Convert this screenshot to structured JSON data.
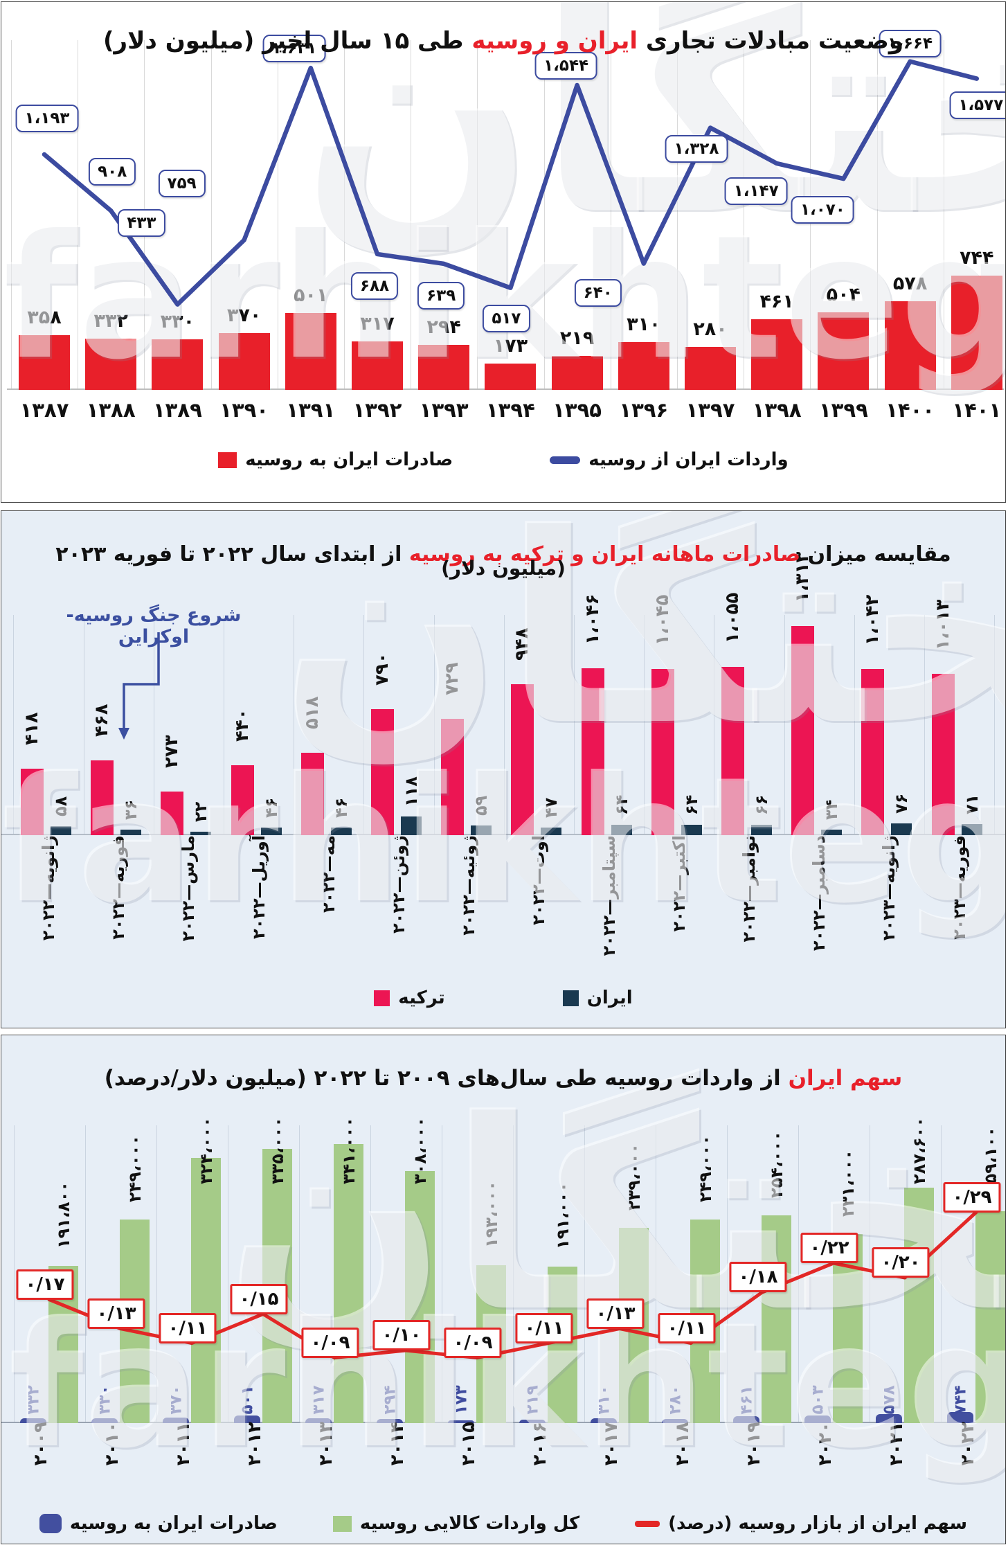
{
  "watermark": "farhikhtegan",
  "watermark_fa": "فرهیختگان",
  "panel1": {
    "title": {
      "pre": "وضعیت مبادلات تجاری ",
      "highlight": "ایران و روسیه",
      "post": " طی ۱۵ سال اخیر (میلیون دلار)"
    }
  },
  "panel2": {
    "title": {
      "pre": "مقایسه میزان ",
      "highlight": "صادرات ماهانه ایران و ترکیه به روسیه",
      "post": " از ابتدای سال ۲۰۲۲ تا فوریه ۲۰۲۳"
    },
    "subtitle": "(میلیون دلار)",
    "annotation": "شروع جنگ روسیه-اوکراین",
    "annotation_target": "فوریه—۲۰۲۲"
  },
  "panel3": {
    "title": {
      "pre": "",
      "highlight": "سهم ایران",
      "post": " از واردات روسیه طی سال‌های ۲۰۰۹ تا ۲۰۲۲ (میلیون دلار/درصد)"
    }
  },
  "chart_data": [
    {
      "type": "bar+line",
      "title": "وضعیت مبادلات تجاری ایران و روسیه طی ۱۵ سال اخیر (میلیون دلار)",
      "unit": "میلیون دلار",
      "xlabel": "سال (هجری شمسی)",
      "grid": "vertical",
      "legend_position": "bottom",
      "categories": [
        "۱۳۸۷",
        "۱۳۸۸",
        "۱۳۸۹",
        "۱۳۹۰",
        "۱۳۹۱",
        "۱۳۹۲",
        "۱۳۹۳",
        "۱۳۹۴",
        "۱۳۹۵",
        "۱۳۹۶",
        "۱۳۹۷",
        "۱۳۹۸",
        "۱۳۹۹",
        "۱۴۰۰",
        "۱۴۰۱"
      ],
      "series": [
        {
          "name": "صادرات ایران به روسیه",
          "type": "bar",
          "color": "#e8202a",
          "values": [
            358,
            332,
            330,
            370,
            501,
            317,
            294,
            173,
            219,
            310,
            280,
            461,
            504,
            578,
            744
          ],
          "labels": [
            "۳۵۸",
            "۳۳۲",
            "۳۳۰",
            "۳۷۰",
            "۵۰۱",
            "۳۱۷",
            "۲۹۴",
            "۱۷۳",
            "۲۱۹",
            "۳۱۰",
            "۲۸۰",
            "۴۶۱",
            "۵۰۴",
            "۵۷۸",
            "۷۴۴"
          ]
        },
        {
          "name": "واردات ایران از روسیه",
          "type": "line",
          "color": "#3c4ba0",
          "values": [
            1193,
            908,
            433,
            759,
            1631,
            688,
            639,
            517,
            1544,
            640,
            1328,
            1147,
            1070,
            1664,
            1577
          ],
          "labels": [
            "۱،۱۹۳",
            "۹۰۸",
            "۴۳۳",
            "۷۵۹",
            "۱،۶۳۱",
            "۶۸۸",
            "۶۳۹",
            "۵۱۷",
            "۱،۵۴۴",
            "۶۴۰",
            "۱،۳۲۸",
            "۱،۱۴۷",
            "۱،۰۷۰",
            "۱،۶۶۴",
            "۱،۵۷۷"
          ]
        }
      ]
    },
    {
      "type": "bar",
      "title": "مقایسه میزان صادرات ماهانه ایران و ترکیه به روسیه از ابتدای سال ۲۰۲۲ تا فوریه ۲۰۲۳ (میلیون دلار)",
      "unit": "میلیون دلار",
      "grid": "vertical",
      "legend_position": "bottom",
      "categories": [
        "ژانویه—۲۰۲۲",
        "فوریه—۲۰۲۲",
        "مارس—۲۰۲۲",
        "آوریل—۲۰۲۲",
        "مه—۲۰۲۲",
        "ژوئن—۲۰۲۲",
        "ژوئیه—۲۰۲۲",
        "اوت—۲۰۲۲",
        "سپتامبر—۲۰۲۲",
        "اکتبر—۲۰۲۲",
        "نوامبر—۲۰۲۲",
        "دسامبر—۲۰۲۲",
        "ژانویه—۲۰۲۳",
        "فوریه—۲۰۲۳"
      ],
      "series": [
        {
          "name": "ترکیه",
          "type": "bar",
          "color": "#ec1553",
          "values": [
            418,
            468,
            273,
            440,
            518,
            790,
            729,
            948,
            1046,
            1045,
            1055,
            1313,
            1042,
            1013
          ],
          "labels": [
            "۴۱۸",
            "۴۶۸",
            "۲۷۳",
            "۴۴۰",
            "۵۱۸",
            "۷۹۰",
            "۷۲۹",
            "۹۴۸",
            "۱،۰۴۶",
            "۱،۰۴۵",
            "۱،۰۵۵",
            "۱،۳۱۳",
            "۱،۰۴۲",
            "۱،۰۱۳"
          ]
        },
        {
          "name": "ایران",
          "type": "bar",
          "color": "#1a3950",
          "values": [
            58,
            36,
            22,
            46,
            46,
            118,
            59,
            47,
            64,
            64,
            66,
            34,
            76,
            71
          ],
          "labels": [
            "۵۸",
            "۳۶",
            "۲۲",
            "۴۶",
            "۴۶",
            "۱۱۸",
            "۵۹",
            "۴۷",
            "۶۴",
            "۶۴",
            "۶۶",
            "۳۴",
            "۷۶",
            "۷۱"
          ]
        }
      ]
    },
    {
      "type": "bar+line",
      "title": "سهم ایران از واردات روسیه طی سال‌های ۲۰۰۹ تا ۲۰۲۲ (میلیون دلار/درصد)",
      "unit": "میلیون دلار / درصد",
      "grid": "vertical",
      "legend_position": "bottom",
      "categories": [
        "۲۰۰۹",
        "۲۰۱۰",
        "۲۰۱۱",
        "۲۰۱۲",
        "۲۰۱۳",
        "۲۰۱۴",
        "۲۰۱۵",
        "۲۰۱۶",
        "۲۰۱۷",
        "۲۰۱۸",
        "۲۰۱۹",
        "۲۰۲۰",
        "۲۰۲۱",
        "۲۰۲۲"
      ],
      "series": [
        {
          "name": "صادرات ایران به روسیه",
          "type": "bar",
          "color": "#424f9f",
          "values": [
            332,
            330,
            370,
            501,
            317,
            294,
            173,
            219,
            310,
            280,
            461,
            503,
            578,
            744
          ],
          "labels": [
            "۳۳۲",
            "۳۳۰",
            "۳۷۰",
            "۵۰۱",
            "۳۱۷",
            "۲۹۴",
            "۱۷۳",
            "۲۱۹",
            "۳۱۰",
            "۲۸۰",
            "۴۶۱",
            "۵۰۳",
            "۵۷۸",
            "۷۴۴"
          ]
        },
        {
          "name": "کل واردات کالایی روسیه",
          "type": "bar",
          "color": "#a5cb88",
          "values": [
            191800,
            249000,
            324000,
            335000,
            341000,
            308000,
            193000,
            191000,
            239000,
            249000,
            254000,
            231000,
            287600,
            259100
          ],
          "labels": [
            "۱۹۱،۸۰۰",
            "۲۴۹،۰۰۰",
            "۳۲۴،۰۰۰",
            "۳۳۵،۰۰۰",
            "۳۴۱،۰۰۰",
            "۳۰۸،۰۰۰",
            "۱۹۳،۰۰۰",
            "۱۹۱،۰۰۰",
            "۲۳۹،۰۰۰",
            "۲۴۹،۰۰۰",
            "۲۵۴،۰۰۰",
            "۲۳۱،۰۰۰",
            "۲۸۷،۶۰۰",
            "۲۵۹،۱۰۰"
          ]
        },
        {
          "name": "سهم ایران از بازار روسیه (درصد)",
          "type": "line",
          "color": "#e32726",
          "values": [
            0.17,
            0.13,
            0.11,
            0.15,
            0.09,
            0.1,
            0.09,
            0.11,
            0.13,
            0.11,
            0.18,
            0.22,
            0.2,
            0.29
          ],
          "labels": [
            "۰/۱۷",
            "۰/۱۳",
            "۰/۱۱",
            "۰/۱۵",
            "۰/۰۹",
            "۰/۱۰",
            "۰/۰۹",
            "۰/۱۱",
            "۰/۱۳",
            "۰/۱۱",
            "۰/۱۸",
            "۰/۲۲",
            "۰/۲۰",
            "۰/۲۹"
          ]
        }
      ]
    }
  ]
}
